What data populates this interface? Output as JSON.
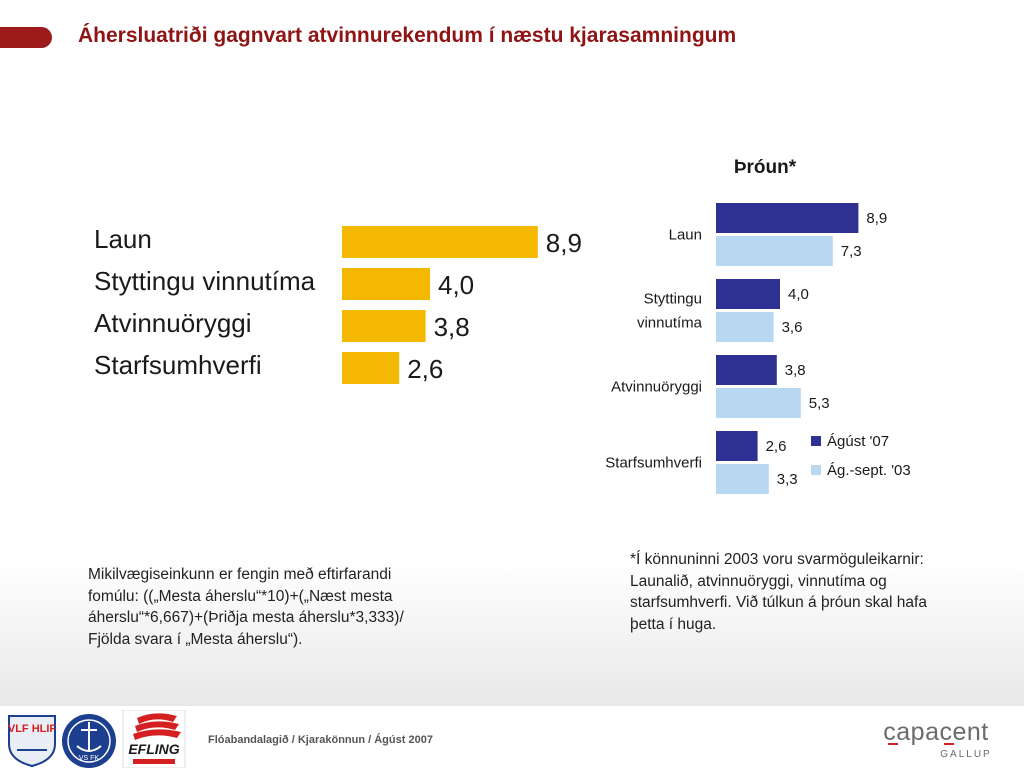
{
  "header": {
    "title": "Áhersluatriði gagnvart atvinnurekendum í næstu kjarasamningum"
  },
  "chart_data": [
    {
      "type": "bar",
      "orientation": "horizontal",
      "categories": [
        "Laun",
        "Styttingu vinnutíma",
        "Atvinnuöryggi",
        "Starfsumhverfi"
      ],
      "values": [
        8.9,
        4.0,
        3.8,
        2.6
      ],
      "value_labels": [
        "8,9",
        "4,0",
        "3,8",
        "2,6"
      ],
      "color": "#f5b800",
      "xlim": [
        0,
        10
      ]
    },
    {
      "type": "bar",
      "orientation": "horizontal",
      "title": "Þróun*",
      "categories": [
        {
          "lines": [
            "Laun"
          ]
        },
        {
          "lines": [
            "Styttingu",
            "vinnutíma"
          ]
        },
        {
          "lines": [
            "Atvinnuöryggi"
          ]
        },
        {
          "lines": [
            "Starfsumhverfi"
          ]
        }
      ],
      "series": [
        {
          "name": "Ágúst '07",
          "color": "#2e3192",
          "values": [
            8.9,
            4.0,
            3.8,
            2.6
          ],
          "value_labels": [
            "8,9",
            "4,0",
            "3,8",
            "2,6"
          ]
        },
        {
          "name": "Ág.-sept. '03",
          "color": "#b8d7f0",
          "values": [
            7.3,
            3.6,
            5.3,
            3.3
          ],
          "value_labels": [
            "7,3",
            "3,6",
            "5,3",
            "3,3"
          ]
        }
      ],
      "legend": "bottom-right",
      "xlim": [
        0,
        10
      ]
    }
  ],
  "notes": {
    "left": "Mikilvægiseinkunn er fengin með eftirfarandi\nfomúlu: ((„Mesta áherslu“*10)+(„Næst mesta\náherslu“*6,667)+(Þriðja mesta áherslu*3,333)/\nFjölda svara í „Mesta áherslu“).",
    "right": "*Í könnuninni 2003 voru svarmöguleikarnir:\nLaunalið, atvinnuöryggi, vinnutíma og\nstarfsumhverfi. Við túlkun á þróun skal hafa\nþetta í huga."
  },
  "footer": {
    "text": "Flóabandalagið  / Kjarakönnun / Ágúst 2007",
    "logos": {
      "vlfhlif": "VLF HLIF",
      "vsfk": "VS FK",
      "efling": "EFLING"
    },
    "brand_name": "capacent",
    "brand_sub": "GALLUP"
  }
}
